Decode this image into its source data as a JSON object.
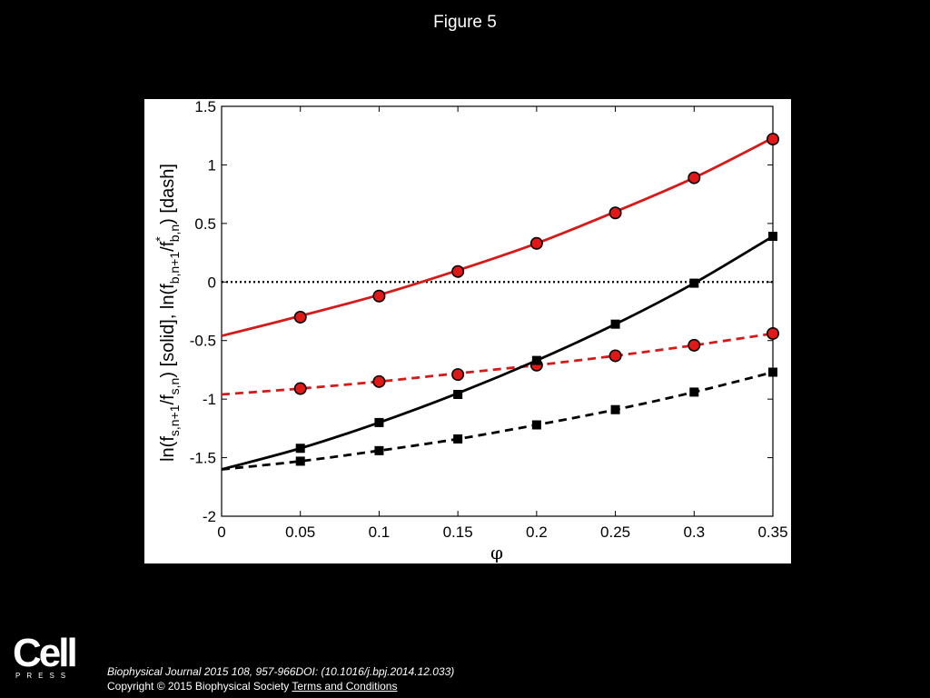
{
  "figure": {
    "title": "Figure 5"
  },
  "chart_data": {
    "type": "line",
    "xlabel": "φ",
    "ylabel": "ln(f_{s,n+1}/f_{s,n}) [solid],  ln(f_{b,n+1}/f*_{b,n}) [dash]",
    "xlim": [
      0,
      0.35
    ],
    "ylim": [
      -2,
      1.5
    ],
    "x_ticks": [
      "0",
      "0.05",
      "0.1",
      "0.15",
      "0.2",
      "0.25",
      "0.3",
      "0.35"
    ],
    "y_ticks": [
      "-2",
      "-1.5",
      "-1",
      "-0.5",
      "0",
      "0.5",
      "1",
      "1.5"
    ],
    "reference_line": {
      "y": 0,
      "style": "dotted",
      "color": "#000000"
    },
    "series": [
      {
        "color": "#d61a1a",
        "style": "solid",
        "marker": "circle",
        "curve_x": [
          0,
          0.05,
          0.1,
          0.15,
          0.2,
          0.25,
          0.3,
          0.35
        ],
        "curve_y": [
          -0.46,
          -0.29,
          -0.11,
          0.1,
          0.33,
          0.6,
          0.89,
          1.23
        ],
        "marker_x": [
          0.05,
          0.1,
          0.15,
          0.2,
          0.25,
          0.3,
          0.35
        ],
        "marker_y": [
          -0.3,
          -0.12,
          0.09,
          0.33,
          0.59,
          0.89,
          1.22
        ]
      },
      {
        "color": "#d61a1a",
        "style": "dashed",
        "marker": "circle",
        "curve_x": [
          0,
          0.05,
          0.1,
          0.15,
          0.2,
          0.25,
          0.3,
          0.35
        ],
        "curve_y": [
          -0.96,
          -0.91,
          -0.85,
          -0.78,
          -0.71,
          -0.63,
          -0.54,
          -0.44
        ],
        "marker_x": [
          0.05,
          0.1,
          0.15,
          0.2,
          0.25,
          0.3,
          0.35
        ],
        "marker_y": [
          -0.91,
          -0.85,
          -0.79,
          -0.71,
          -0.63,
          -0.54,
          -0.44
        ]
      },
      {
        "color": "#000000",
        "style": "solid",
        "marker": "square",
        "curve_x": [
          0,
          0.05,
          0.1,
          0.15,
          0.2,
          0.25,
          0.3,
          0.35
        ],
        "curve_y": [
          -1.6,
          -1.42,
          -1.2,
          -0.95,
          -0.67,
          -0.36,
          -0.01,
          0.39
        ],
        "marker_x": [
          0.05,
          0.1,
          0.15,
          0.2,
          0.25,
          0.3,
          0.35
        ],
        "marker_y": [
          -1.42,
          -1.2,
          -0.96,
          -0.67,
          -0.36,
          -0.01,
          0.39
        ]
      },
      {
        "color": "#000000",
        "style": "dashed",
        "marker": "square",
        "curve_x": [
          0,
          0.05,
          0.1,
          0.15,
          0.2,
          0.25,
          0.3,
          0.35
        ],
        "curve_y": [
          -1.6,
          -1.53,
          -1.44,
          -1.34,
          -1.22,
          -1.09,
          -0.94,
          -0.77
        ],
        "marker_x": [
          0.05,
          0.1,
          0.15,
          0.2,
          0.25,
          0.3,
          0.35
        ],
        "marker_y": [
          -1.53,
          -1.44,
          -1.34,
          -1.22,
          -1.09,
          -0.94,
          -0.77
        ]
      }
    ]
  },
  "publisher": {
    "logo_main": "Cell",
    "logo_sub": "PRESS"
  },
  "footer": {
    "citation": "Biophysical Journal 2015 108, 957-966DOI: (10.1016/j.bpj.2014.12.033)",
    "copyright": "Copyright © 2015 Biophysical Society",
    "terms_link": "Terms and Conditions"
  }
}
